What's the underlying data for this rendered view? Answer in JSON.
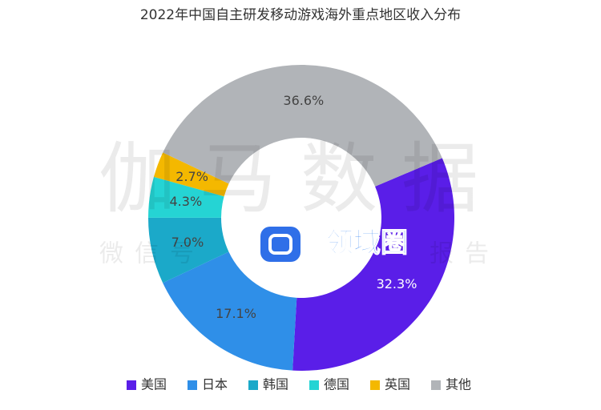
{
  "chart_data": {
    "type": "donut",
    "title": "2022年中国自主研发移动游戏海外重点地区收入分布",
    "categories": [
      "美国",
      "日本",
      "韩国",
      "德国",
      "英国",
      "其他"
    ],
    "values": [
      32.3,
      17.1,
      7.0,
      4.3,
      2.7,
      36.6
    ],
    "value_labels": [
      "32.3%",
      "17.1%",
      "7.0%",
      "4.3%",
      "2.7%",
      "36.6%"
    ],
    "colors": [
      "#5a1ee8",
      "#2f8fe8",
      "#1ba9c9",
      "#25d4d4",
      "#f4b800",
      "#b1b4b8"
    ],
    "legend": "bottom",
    "watermarks": [
      "伽马数据",
      "微信号",
      "报告"
    ],
    "logo": "领域圈"
  }
}
